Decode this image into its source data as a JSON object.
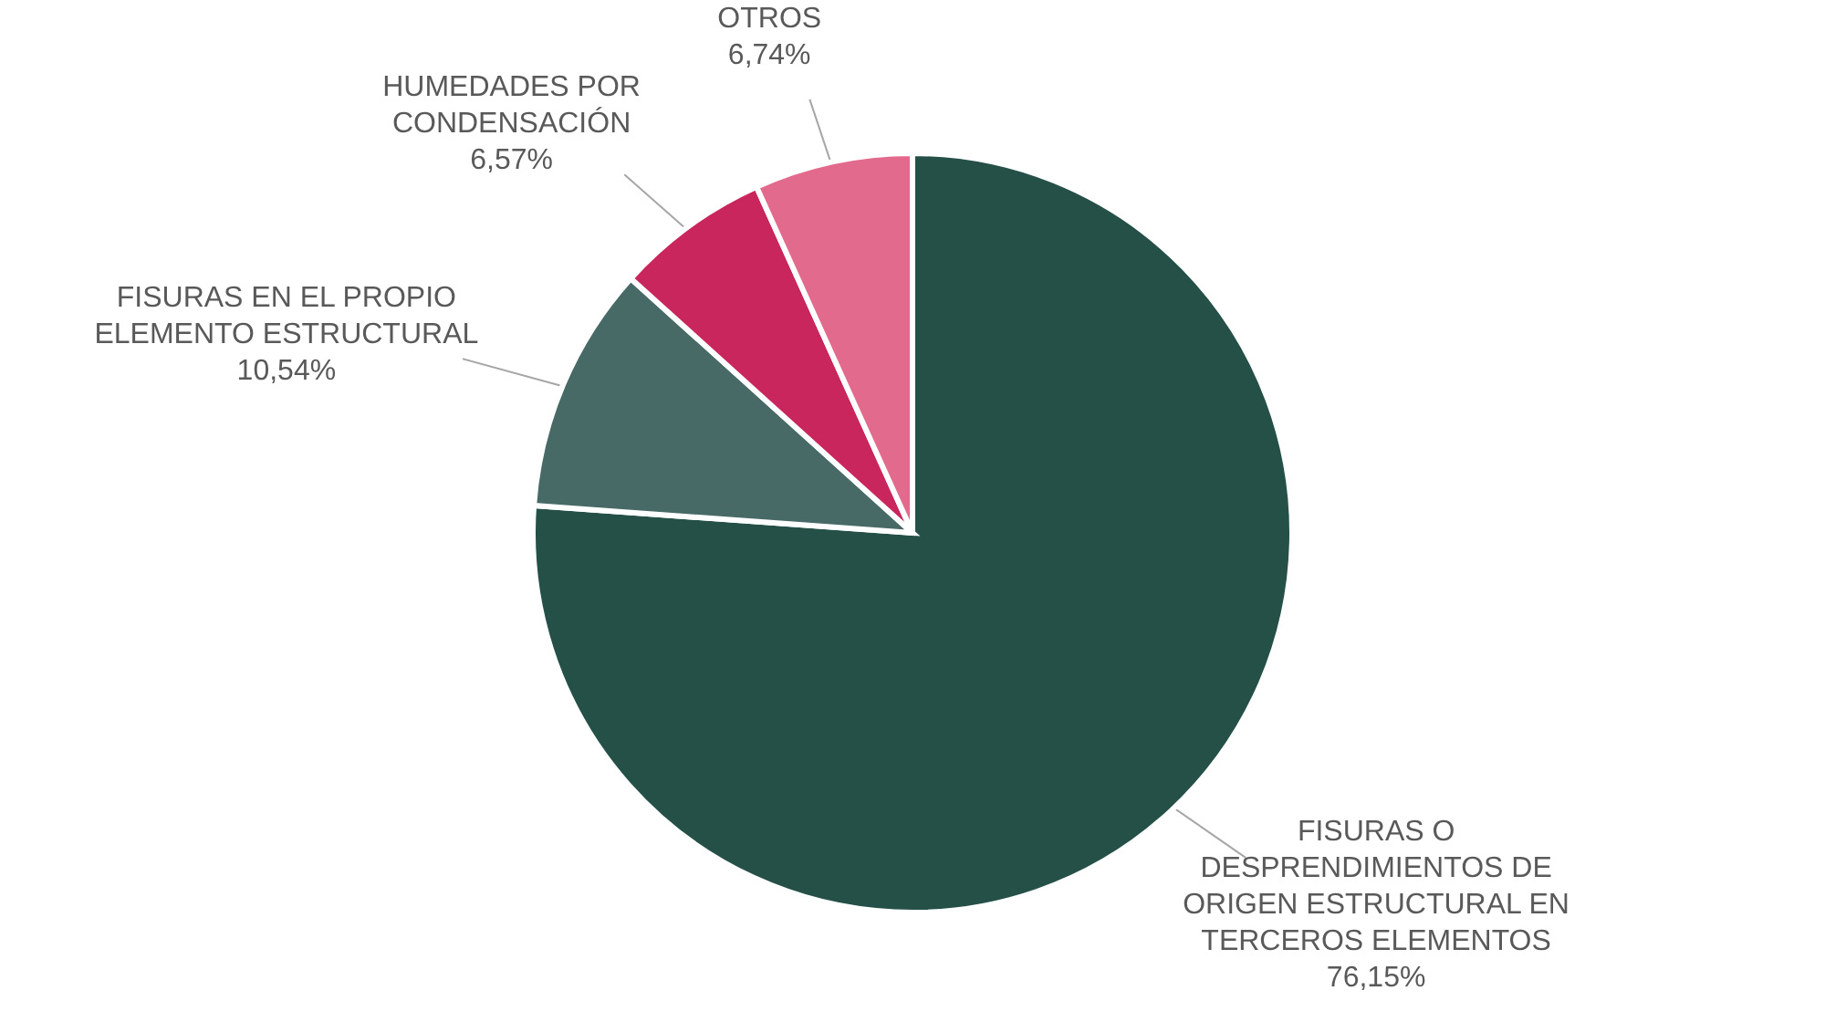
{
  "chart_data": {
    "type": "pie",
    "categories": [
      "FISURAS O DESPRENDIMIENTOS DE ORIGEN ESTRUCTURAL EN TERCEROS ELEMENTOS",
      "FISURAS EN EL PROPIO ELEMENTO ESTRUCTURAL",
      "HUMEDADES POR CONDENSACIÓN",
      "OTROS"
    ],
    "values": [
      76.15,
      10.54,
      6.57,
      6.74
    ],
    "colors": [
      "#255048",
      "#476a66",
      "#c8265c",
      "#e26a8c"
    ],
    "value_labels": [
      "76,15%",
      "10,54%",
      "6,57%",
      "6,74%"
    ]
  }
}
